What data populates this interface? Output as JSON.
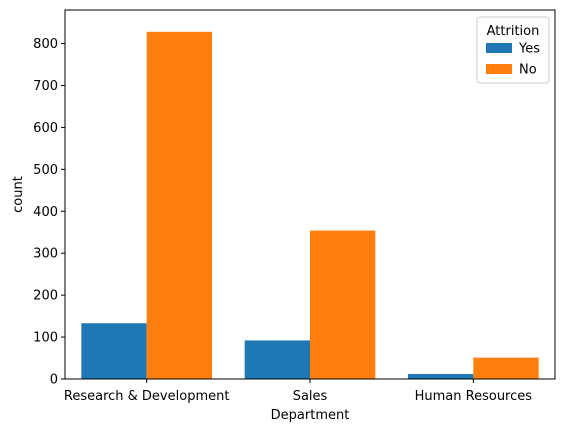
{
  "chart_data": {
    "type": "bar",
    "xlabel": "Department",
    "ylabel": "count",
    "categories": [
      "Research & Development",
      "Sales",
      "Human Resources"
    ],
    "series": [
      {
        "name": "Yes",
        "values": [
          133,
          92,
          12
        ],
        "color": "#1f77b4"
      },
      {
        "name": "No",
        "values": [
          828,
          354,
          51
        ],
        "color": "#ff7f0e"
      }
    ],
    "ylim": [
      0,
      880
    ],
    "yticks": [
      0,
      100,
      200,
      300,
      400,
      500,
      600,
      700,
      800
    ],
    "legend": {
      "title": "Attrition",
      "position": "top-right"
    },
    "grid": false
  }
}
